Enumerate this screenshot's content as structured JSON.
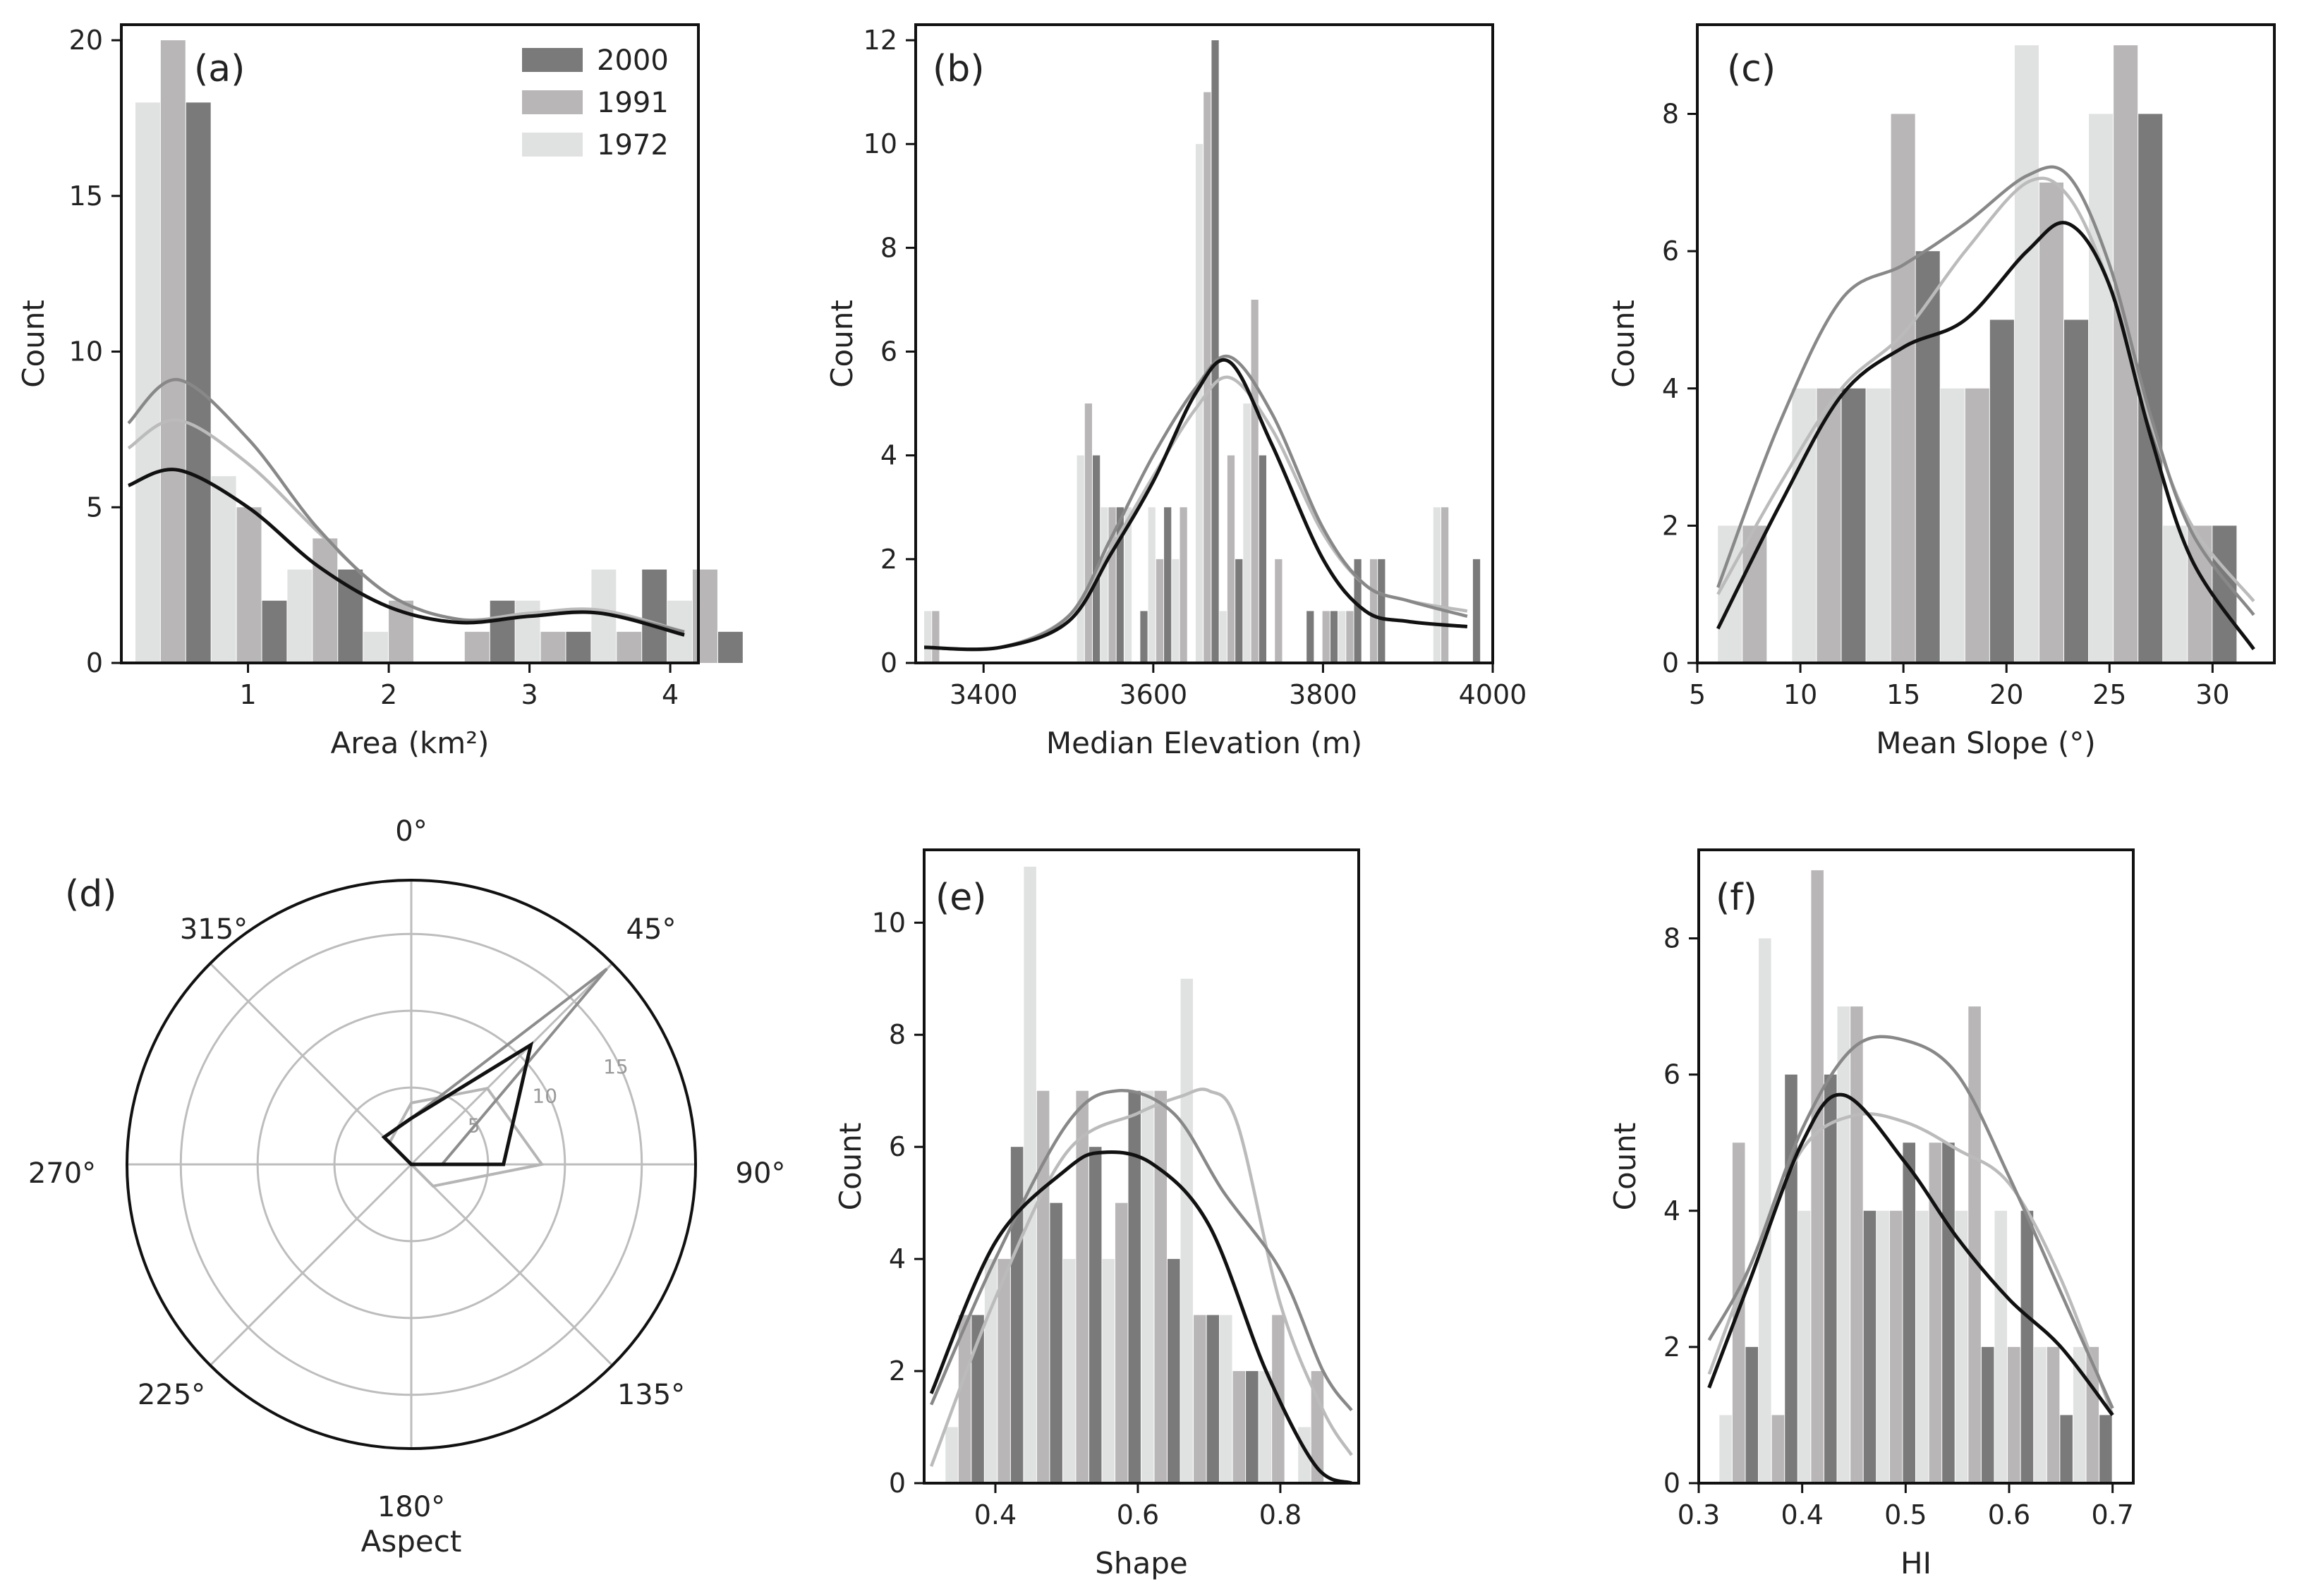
{
  "colors": {
    "2000": "#7a7a7a",
    "1991": "#b9b6b7",
    "1972": "#e0e2e1",
    "kde2000": "#111111",
    "kde1991": "#888888",
    "kde1972": "#bbbbbb"
  },
  "legend": [
    {
      "label": "2000",
      "color": "#7a7a7a"
    },
    {
      "label": "1991",
      "color": "#b9b6b7"
    },
    {
      "label": "1972",
      "color": "#e0e2e1"
    }
  ],
  "chart_data": [
    {
      "id": "a",
      "panel": "(a)",
      "type": "bar",
      "xlabel": "Area (km²)",
      "ylabel": "Count",
      "xlim": [
        0.1,
        4.2
      ],
      "ylim": [
        0,
        20.5
      ],
      "xticks": [
        1,
        2,
        3,
        4
      ],
      "yticks": [
        0,
        5,
        10,
        15,
        20
      ],
      "bin_starts": [
        0.2,
        0.74,
        1.28,
        1.82,
        2.36,
        2.9,
        3.44,
        3.98
      ],
      "bin_width": 0.54,
      "series": [
        {
          "name": "1972",
          "values": [
            18,
            6,
            3,
            1,
            0,
            2,
            3,
            2
          ]
        },
        {
          "name": "1991",
          "values": [
            20,
            5,
            4,
            2,
            1,
            1,
            1,
            3
          ]
        },
        {
          "name": "2000",
          "values": [
            18,
            2,
            3,
            0,
            2,
            1,
            3,
            1
          ]
        }
      ],
      "kde": [
        {
          "name": "1972",
          "x": [
            0.15,
            0.5,
            1,
            1.5,
            2,
            2.5,
            3,
            3.5,
            4.1
          ],
          "y": [
            6.9,
            7.8,
            6.4,
            4.2,
            2.2,
            1.4,
            1.6,
            1.7,
            1.0
          ]
        },
        {
          "name": "1991",
          "x": [
            0.15,
            0.5,
            1,
            1.5,
            2,
            2.5,
            3,
            3.5,
            4.1
          ],
          "y": [
            7.7,
            9.1,
            7.2,
            4.3,
            2.2,
            1.4,
            1.5,
            1.6,
            1.0
          ]
        },
        {
          "name": "2000",
          "x": [
            0.15,
            0.5,
            1,
            1.5,
            2,
            2.5,
            3,
            3.5,
            4.1
          ],
          "y": [
            5.7,
            6.2,
            5.0,
            3.1,
            1.8,
            1.3,
            1.5,
            1.6,
            0.9
          ]
        }
      ]
    },
    {
      "id": "b",
      "panel": "(b)",
      "type": "bar",
      "xlabel": "Median Elevation (m)",
      "ylabel": "Count",
      "xlim": [
        3320,
        4000
      ],
      "ylim": [
        0,
        12.3
      ],
      "xticks": [
        3400,
        3600,
        3800,
        4000
      ],
      "yticks": [
        0,
        2,
        4,
        6,
        8,
        10,
        12
      ],
      "bin_starts": [
        3330,
        3510,
        3538,
        3566,
        3594,
        3622,
        3650,
        3678,
        3706,
        3734,
        3762,
        3790,
        3818,
        3846,
        3930,
        3958
      ],
      "bin_width": 28,
      "series": [
        {
          "name": "1972",
          "values": [
            1,
            4,
            3,
            3,
            3,
            2,
            10,
            1,
            5,
            0,
            0,
            0,
            1,
            0,
            3,
            0
          ]
        },
        {
          "name": "1991",
          "values": [
            1,
            5,
            3,
            0,
            2,
            3,
            11,
            4,
            7,
            2,
            0,
            1,
            1,
            2,
            3,
            0
          ]
        },
        {
          "name": "2000",
          "values": [
            0,
            4,
            3,
            1,
            3,
            0,
            12,
            2,
            4,
            0,
            1,
            1,
            2,
            2,
            0,
            2
          ]
        }
      ],
      "kde": [
        {
          "name": "1972",
          "x": [
            3330,
            3420,
            3500,
            3550,
            3600,
            3650,
            3690,
            3740,
            3800,
            3850,
            3900,
            3970
          ],
          "y": [
            0.3,
            0.3,
            0.9,
            2.2,
            3.6,
            4.9,
            5.5,
            4.5,
            2.5,
            1.5,
            1.2,
            1.0
          ]
        },
        {
          "name": "1991",
          "x": [
            3330,
            3420,
            3500,
            3550,
            3600,
            3650,
            3690,
            3740,
            3800,
            3850,
            3900,
            3970
          ],
          "y": [
            0.3,
            0.3,
            0.9,
            2.4,
            4.0,
            5.3,
            5.9,
            4.8,
            2.6,
            1.5,
            1.2,
            0.9
          ]
        },
        {
          "name": "2000",
          "x": [
            3330,
            3420,
            3500,
            3550,
            3600,
            3650,
            3690,
            3740,
            3800,
            3850,
            3900,
            3970
          ],
          "y": [
            0.3,
            0.3,
            0.8,
            2.1,
            3.5,
            5.2,
            5.8,
            4.2,
            2.0,
            1.0,
            0.8,
            0.7
          ]
        }
      ]
    },
    {
      "id": "c",
      "panel": "(c)",
      "type": "bar",
      "xlabel": "Mean Slope (°)",
      "ylabel": "Count",
      "xlim": [
        5,
        33
      ],
      "ylim": [
        0,
        9.3
      ],
      "xticks": [
        5,
        10,
        15,
        20,
        25,
        30
      ],
      "yticks": [
        0,
        2,
        4,
        6,
        8
      ],
      "bin_starts": [
        6,
        9.6,
        13.2,
        16.8,
        20.4,
        24.0,
        27.6
      ],
      "bin_width": 3.6,
      "series": [
        {
          "name": "1972",
          "values": [
            2,
            4,
            4,
            4,
            9,
            8,
            2
          ]
        },
        {
          "name": "1991",
          "values": [
            2,
            4,
            8,
            4,
            7,
            9,
            2
          ]
        },
        {
          "name": "2000",
          "values": [
            0,
            4,
            6,
            5,
            5,
            8,
            2
          ]
        }
      ],
      "kde": [
        {
          "name": "1972",
          "x": [
            6,
            9,
            12,
            15,
            18,
            21,
            23,
            25,
            27,
            29,
            32
          ],
          "y": [
            1.0,
            2.6,
            4.0,
            4.8,
            6.0,
            7.0,
            6.8,
            5.5,
            3.5,
            2.0,
            0.9
          ]
        },
        {
          "name": "1991",
          "x": [
            6,
            9,
            12,
            15,
            18,
            21,
            23,
            25,
            27,
            29,
            32
          ],
          "y": [
            1.1,
            3.5,
            5.3,
            5.8,
            6.4,
            7.1,
            7.1,
            5.8,
            3.6,
            1.9,
            0.7
          ]
        },
        {
          "name": "2000",
          "x": [
            6,
            9,
            12,
            15,
            18,
            21,
            23,
            25,
            27,
            29,
            32
          ],
          "y": [
            0.5,
            2.3,
            3.9,
            4.6,
            5.0,
            6.0,
            6.4,
            5.5,
            3.3,
            1.5,
            0.2
          ]
        }
      ]
    },
    {
      "id": "d",
      "panel": "(d)",
      "type": "polar",
      "xlabel": "Aspect",
      "angle_labels": [
        "0°",
        "45°",
        "90°",
        "135°",
        "180°",
        "225°",
        "270°",
        "315°"
      ],
      "rticks": [
        5,
        10,
        15
      ],
      "rmax": 18.5,
      "angles": [
        0,
        45,
        90,
        135,
        180,
        225,
        270,
        315
      ],
      "series": [
        {
          "name": "1972",
          "values": [
            4,
            7,
            8.5,
            2,
            0,
            0,
            0,
            2
          ]
        },
        {
          "name": "1991",
          "values": [
            3,
            18,
            2,
            0,
            0,
            0,
            0,
            2.5
          ]
        },
        {
          "name": "2000",
          "values": [
            3,
            11,
            6,
            0,
            0,
            0,
            0,
            2.5
          ]
        }
      ]
    },
    {
      "id": "e",
      "panel": "(e)",
      "type": "bar",
      "xlabel": "Shape",
      "ylabel": "Count",
      "xlim": [
        0.3,
        0.91
      ],
      "ylim": [
        0,
        11.3
      ],
      "xticks": [
        0.4,
        0.6,
        0.8
      ],
      "yticks": [
        0,
        2,
        4,
        6,
        8,
        10
      ],
      "bin_starts": [
        0.33,
        0.385,
        0.44,
        0.495,
        0.55,
        0.605,
        0.66,
        0.715,
        0.77,
        0.825,
        0.88
      ],
      "bin_width": 0.055,
      "series": [
        {
          "name": "1972",
          "values": [
            1,
            4,
            11,
            4,
            4,
            7,
            9,
            3,
            2,
            1,
            0
          ]
        },
        {
          "name": "1991",
          "values": [
            3,
            4,
            7,
            7,
            5,
            7,
            3,
            2,
            3,
            2,
            0
          ]
        },
        {
          "name": "2000",
          "values": [
            3,
            6,
            5,
            6,
            7,
            4,
            3,
            2,
            0,
            0,
            0
          ]
        }
      ],
      "kde": [
        {
          "name": "1972",
          "x": [
            0.31,
            0.4,
            0.5,
            0.6,
            0.66,
            0.7,
            0.74,
            0.8,
            0.86,
            0.9
          ],
          "y": [
            0.3,
            3.3,
            5.9,
            6.6,
            6.9,
            7.0,
            6.4,
            3.2,
            1.3,
            0.5
          ]
        },
        {
          "name": "1991",
          "x": [
            0.31,
            0.4,
            0.5,
            0.57,
            0.65,
            0.72,
            0.8,
            0.86,
            0.9
          ],
          "y": [
            1.4,
            4.0,
            6.4,
            7.0,
            6.6,
            5.2,
            3.8,
            2.0,
            1.3
          ]
        },
        {
          "name": "2000",
          "x": [
            0.31,
            0.4,
            0.5,
            0.55,
            0.62,
            0.7,
            0.78,
            0.85,
            0.9
          ],
          "y": [
            1.6,
            4.3,
            5.6,
            5.9,
            5.7,
            4.6,
            2.0,
            0.3,
            0.0
          ]
        }
      ]
    },
    {
      "id": "f",
      "panel": "(f)",
      "type": "bar",
      "xlabel": "HI",
      "ylabel": "Count",
      "xlim": [
        0.3,
        0.72
      ],
      "ylim": [
        0,
        9.3
      ],
      "xticks": [
        0.3,
        0.4,
        0.5,
        0.6,
        0.7
      ],
      "yticks": [
        0,
        2,
        4,
        6,
        8
      ],
      "bin_starts": [
        0.32,
        0.358,
        0.396,
        0.434,
        0.472,
        0.51,
        0.548,
        0.586,
        0.624,
        0.662
      ],
      "bin_width": 0.038,
      "series": [
        {
          "name": "1972",
          "values": [
            1,
            8,
            4,
            7,
            4,
            4,
            4,
            4,
            2,
            2
          ]
        },
        {
          "name": "1991",
          "values": [
            5,
            1,
            9,
            7,
            4,
            5,
            7,
            2,
            2,
            2
          ]
        },
        {
          "name": "2000",
          "values": [
            2,
            6,
            6,
            4,
            5,
            5,
            2,
            4,
            1,
            1
          ]
        }
      ],
      "kde": [
        {
          "name": "1972",
          "x": [
            0.31,
            0.35,
            0.4,
            0.45,
            0.5,
            0.55,
            0.6,
            0.65,
            0.7
          ],
          "y": [
            1.6,
            3.2,
            4.9,
            5.4,
            5.3,
            4.9,
            4.4,
            3.0,
            1.0
          ]
        },
        {
          "name": "1991",
          "x": [
            0.31,
            0.35,
            0.4,
            0.45,
            0.5,
            0.55,
            0.6,
            0.65,
            0.7
          ],
          "y": [
            2.1,
            3.2,
            5.2,
            6.4,
            6.5,
            6.0,
            4.5,
            2.8,
            1.1
          ]
        },
        {
          "name": "2000",
          "x": [
            0.31,
            0.35,
            0.4,
            0.44,
            0.5,
            0.55,
            0.6,
            0.65,
            0.7
          ],
          "y": [
            1.4,
            3.0,
            5.0,
            5.7,
            4.7,
            3.6,
            2.7,
            2.0,
            1.0
          ]
        }
      ]
    }
  ]
}
